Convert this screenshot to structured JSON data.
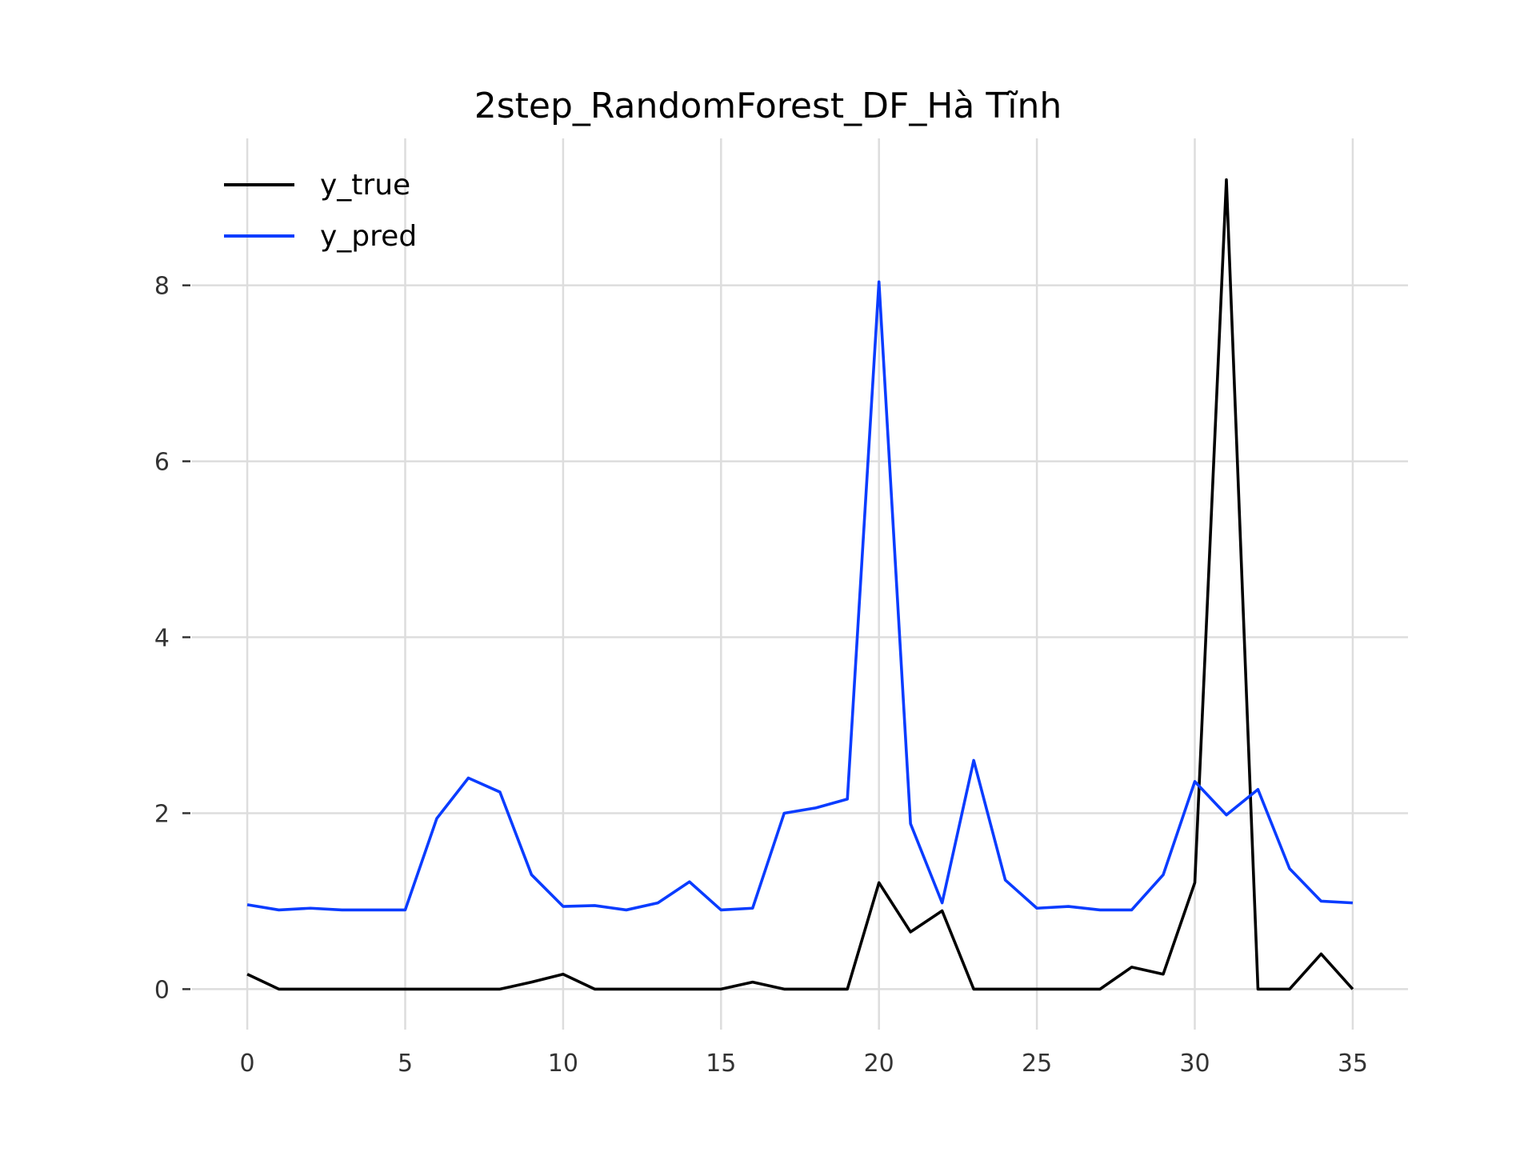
{
  "chart_data": {
    "type": "line",
    "title": "2step_RandomForest_DF_Hà Tĩnh",
    "xlabel": "",
    "ylabel": "",
    "xlim": [
      -1.75,
      36.75
    ],
    "ylim": [
      -0.46,
      9.67
    ],
    "x_ticks": [
      0,
      5,
      10,
      15,
      20,
      25,
      30,
      35
    ],
    "y_ticks": [
      0,
      2,
      4,
      6,
      8
    ],
    "grid": true,
    "legend_position": "top-left",
    "x": [
      0,
      1,
      2,
      3,
      4,
      5,
      6,
      7,
      8,
      9,
      10,
      11,
      12,
      13,
      14,
      15,
      16,
      17,
      18,
      19,
      20,
      21,
      22,
      23,
      24,
      25,
      26,
      27,
      28,
      29,
      30,
      31,
      32,
      33,
      34,
      35
    ],
    "series": [
      {
        "name": "y_true",
        "color": "#000000",
        "values": [
          0.17,
          0,
          0,
          0,
          0,
          0,
          0,
          0,
          0,
          0.08,
          0.17,
          0,
          0,
          0,
          0,
          0,
          0.08,
          0,
          0,
          0,
          1.21,
          0.65,
          0.89,
          0,
          0,
          0,
          0,
          0,
          0.25,
          0.17,
          1.21,
          9.2,
          0,
          0,
          0.4,
          0
        ]
      },
      {
        "name": "y_pred",
        "color": "#0a3cff",
        "values": [
          0.96,
          0.9,
          0.92,
          0.9,
          0.9,
          0.9,
          1.94,
          2.4,
          2.24,
          1.3,
          0.94,
          0.95,
          0.9,
          0.98,
          1.22,
          0.9,
          0.92,
          2.0,
          2.06,
          2.16,
          8.04,
          1.88,
          0.98,
          2.6,
          1.24,
          0.92,
          0.94,
          0.9,
          0.9,
          1.3,
          2.36,
          1.98,
          2.27,
          1.37,
          1.0,
          0.98
        ]
      }
    ]
  }
}
